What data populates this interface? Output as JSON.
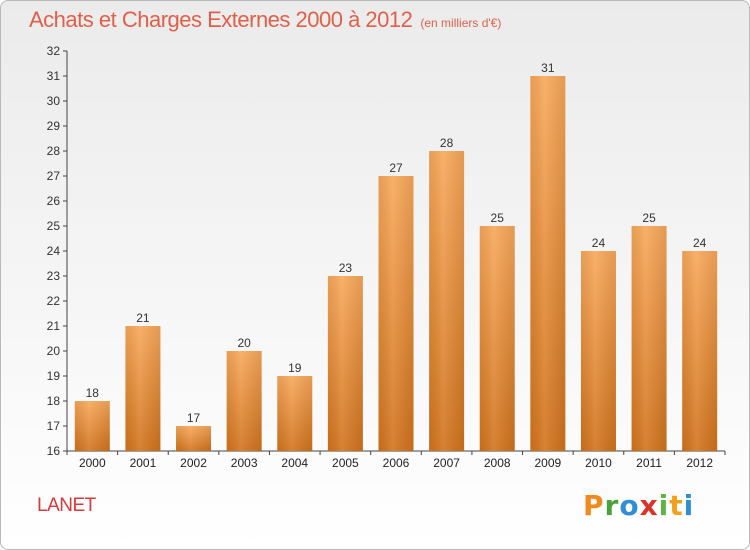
{
  "chart_data": {
    "type": "bar",
    "title": "Achats et Charges Externes 2000 à 2012",
    "unit": "(en milliers d'€)",
    "categories": [
      "2000",
      "2001",
      "2002",
      "2003",
      "2004",
      "2005",
      "2006",
      "2007",
      "2008",
      "2009",
      "2010",
      "2011",
      "2012"
    ],
    "values": [
      18,
      21,
      17,
      20,
      19,
      23,
      27,
      28,
      25,
      31,
      24,
      25,
      24
    ],
    "ylim": [
      16,
      32
    ],
    "yticks": [
      16,
      17,
      18,
      19,
      20,
      21,
      22,
      23,
      24,
      25,
      26,
      27,
      28,
      29,
      30,
      31,
      32
    ],
    "grid": false,
    "bar_color_top": "#f8a85a",
    "bar_color_bottom": "#d2731c",
    "title_color": "#e0604a"
  },
  "footer": {
    "city": "LANET",
    "logo": "Proxiti"
  }
}
